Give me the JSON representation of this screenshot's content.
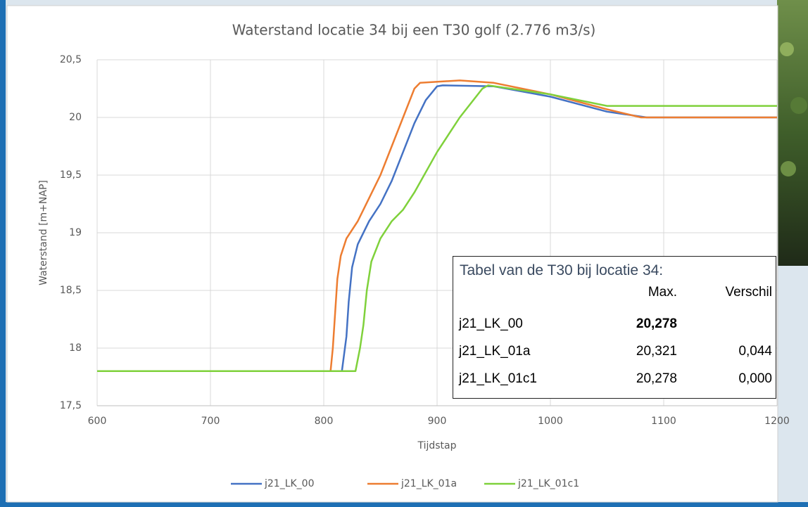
{
  "chart_data": {
    "type": "line",
    "title": "Waterstand locatie 34 bij een T30 golf (2.776 m3/s)",
    "x_label": "Tijdstap",
    "y_label": "Waterstand [m+NAP]",
    "xlim": [
      600,
      1200
    ],
    "xticks": [
      600,
      700,
      800,
      900,
      1000,
      1100,
      1200
    ],
    "ylim": [
      17.5,
      20.5
    ],
    "yticks": [
      {
        "value": 17.5,
        "label": "17,5"
      },
      18,
      {
        "value": 18.5,
        "label": "18,5"
      },
      19,
      {
        "value": 19.5,
        "label": "19,5"
      },
      20,
      {
        "value": 20.5,
        "label": "20,5"
      }
    ],
    "grid": true,
    "legend": "bottom",
    "series": [
      {
        "name": "j21_LK_00",
        "color": "#4472c4",
        "x": [
          600,
          816,
          818,
          820,
          822,
          825,
          830,
          840,
          850,
          860,
          870,
          880,
          890,
          900,
          905,
          950,
          1000,
          1050,
          1085,
          1200
        ],
        "values": [
          17.8,
          17.8,
          17.95,
          18.1,
          18.4,
          18.7,
          18.9,
          19.1,
          19.25,
          19.45,
          19.7,
          19.95,
          20.15,
          20.27,
          20.278,
          20.27,
          20.18,
          20.05,
          20.0,
          20.0
        ]
      },
      {
        "name": "j21_LK_01a",
        "color": "#ed7d31",
        "x": [
          600,
          806,
          808,
          810,
          812,
          815,
          820,
          830,
          840,
          850,
          860,
          870,
          880,
          885,
          920,
          950,
          1000,
          1050,
          1080,
          1200
        ],
        "values": [
          17.8,
          17.8,
          18.0,
          18.3,
          18.6,
          18.8,
          18.95,
          19.1,
          19.3,
          19.5,
          19.75,
          20.0,
          20.25,
          20.3,
          20.321,
          20.3,
          20.2,
          20.07,
          20.0,
          20.0
        ]
      },
      {
        "name": "j21_LK_01c1",
        "color": "#7fd13b",
        "x": [
          600,
          828,
          832,
          835,
          838,
          842,
          850,
          860,
          870,
          880,
          900,
          920,
          940,
          945,
          1000,
          1050,
          1200
        ],
        "values": [
          17.8,
          17.8,
          18.0,
          18.2,
          18.5,
          18.75,
          18.95,
          19.1,
          19.2,
          19.35,
          19.7,
          20.0,
          20.25,
          20.278,
          20.2,
          20.1,
          20.1
        ]
      }
    ]
  },
  "table": {
    "title": "Tabel van de T30 bij locatie 34:",
    "columns": [
      "Max.",
      "Verschil"
    ],
    "rows": [
      [
        "j21_LK_00",
        "20,278"
      ],
      [
        "j21_LK_01a",
        "20,321",
        "0,044"
      ],
      [
        "j21_LK_01c1",
        "20,278",
        "0,000"
      ]
    ]
  }
}
